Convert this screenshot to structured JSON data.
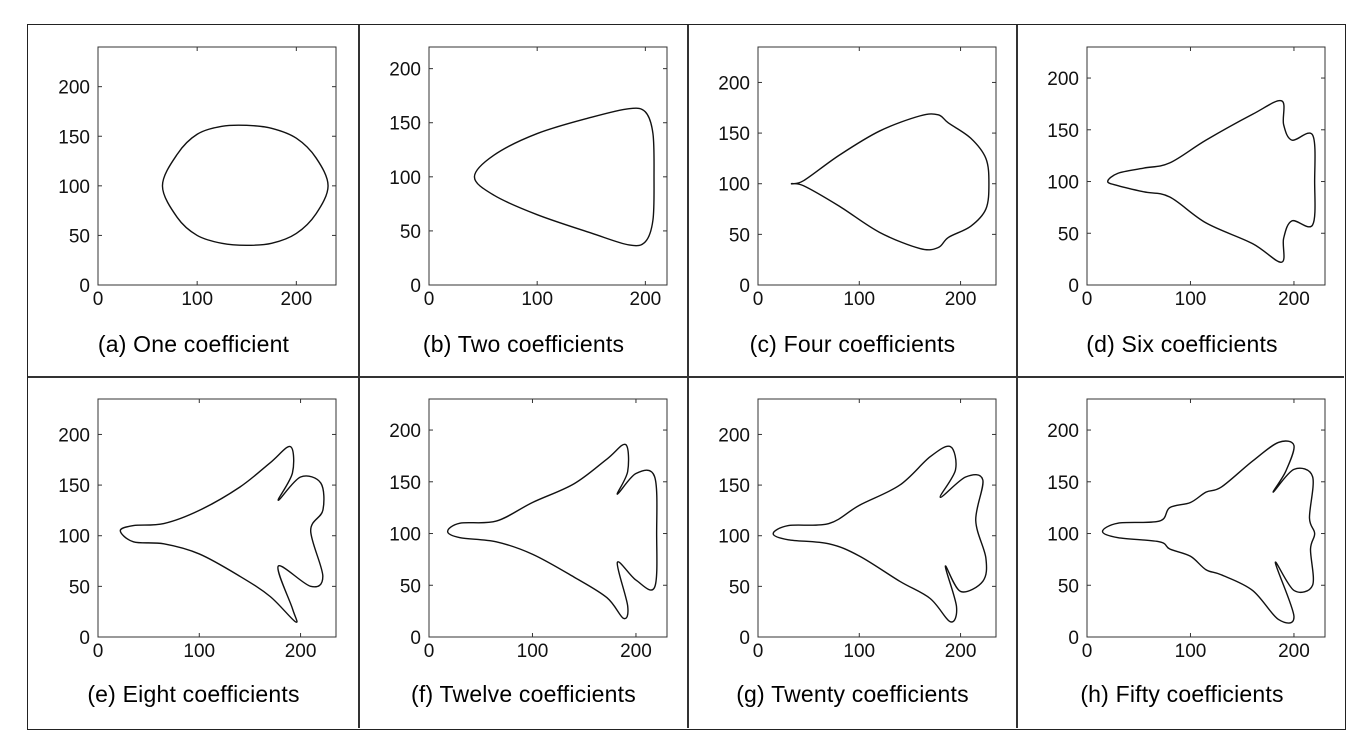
{
  "figure": {
    "panels": [
      {
        "caption": "(a) One coefficient"
      },
      {
        "caption": "(b) Two coefficients"
      },
      {
        "caption": "(c) Four coefficients"
      },
      {
        "caption": "(d) Six coefficients"
      },
      {
        "caption": "(e) Eight coefficients"
      },
      {
        "caption": "(f) Twelve coefficients"
      },
      {
        "caption": "(g) Twenty coefficients"
      },
      {
        "caption": "(h) Fifty coefficients"
      }
    ]
  },
  "chart_data": [
    {
      "type": "line",
      "title": "(a) One coefficient",
      "xlim": [
        0,
        240
      ],
      "ylim": [
        0,
        240
      ],
      "xticks": [
        0,
        100,
        200
      ],
      "yticks": [
        0,
        50,
        100,
        150,
        200
      ],
      "grid": false,
      "x": [
        65,
        80,
        100,
        125,
        150,
        175,
        200,
        220,
        232,
        220,
        200,
        175,
        150,
        125,
        100,
        80,
        65
      ],
      "y": [
        100,
        132,
        152,
        160,
        161,
        158,
        148,
        128,
        100,
        72,
        52,
        42,
        40,
        42,
        50,
        68,
        100
      ]
    },
    {
      "type": "line",
      "title": "(b) Two coefficients",
      "xlim": [
        0,
        220
      ],
      "ylim": [
        0,
        220
      ],
      "xticks": [
        0,
        100,
        200
      ],
      "yticks": [
        0,
        50,
        100,
        150,
        200
      ],
      "grid": false,
      "x": [
        42,
        60,
        100,
        150,
        185,
        200,
        207,
        208,
        207,
        200,
        185,
        150,
        100,
        60,
        42
      ],
      "y": [
        100,
        120,
        140,
        155,
        163,
        160,
        140,
        100,
        60,
        40,
        37,
        48,
        65,
        83,
        100
      ]
    },
    {
      "type": "line",
      "title": "(c) Four coefficients",
      "xlim": [
        0,
        235
      ],
      "ylim": [
        0,
        235
      ],
      "xticks": [
        0,
        100,
        200
      ],
      "yticks": [
        0,
        50,
        100,
        150,
        200
      ],
      "grid": false,
      "x": [
        33,
        45,
        80,
        120,
        160,
        178,
        188,
        210,
        225,
        228,
        225,
        210,
        188,
        178,
        160,
        120,
        80,
        45,
        33
      ],
      "y": [
        100,
        103,
        128,
        152,
        167,
        168,
        160,
        145,
        125,
        100,
        75,
        58,
        47,
        37,
        36,
        52,
        78,
        98,
        100
      ]
    },
    {
      "type": "line",
      "title": "(d) Six coefficients",
      "xlim": [
        0,
        230
      ],
      "ylim": [
        0,
        230
      ],
      "xticks": [
        0,
        100,
        200
      ],
      "yticks": [
        0,
        50,
        100,
        150,
        200
      ],
      "grid": false,
      "x": [
        20,
        30,
        55,
        80,
        115,
        160,
        188,
        190,
        198,
        218,
        220,
        218,
        198,
        190,
        188,
        160,
        115,
        80,
        55,
        30,
        20
      ],
      "y": [
        100,
        108,
        113,
        118,
        140,
        165,
        178,
        155,
        140,
        145,
        100,
        58,
        62,
        45,
        22,
        40,
        60,
        85,
        90,
        96,
        100
      ]
    },
    {
      "type": "line",
      "title": "(e) Eight coefficients",
      "xlim": [
        0,
        235
      ],
      "ylim": [
        0,
        235
      ],
      "xticks": [
        0,
        100,
        200
      ],
      "yticks": [
        0,
        50,
        100,
        150,
        200
      ],
      "grid": false,
      "x": [
        22,
        35,
        65,
        100,
        140,
        170,
        190,
        192,
        178,
        200,
        220,
        222,
        210,
        222,
        210,
        178,
        192,
        195,
        170,
        140,
        100,
        65,
        35,
        22
      ],
      "y": [
        105,
        110,
        112,
        125,
        148,
        172,
        188,
        162,
        135,
        158,
        152,
        125,
        105,
        60,
        50,
        70,
        28,
        15,
        40,
        60,
        82,
        92,
        94,
        105
      ]
    },
    {
      "type": "line",
      "title": "(f) Twelve coefficients",
      "xlim": [
        0,
        230
      ],
      "ylim": [
        0,
        230
      ],
      "xticks": [
        0,
        100,
        200
      ],
      "yticks": [
        0,
        50,
        100,
        150,
        200
      ],
      "grid": false,
      "x": [
        18,
        30,
        65,
        100,
        140,
        172,
        190,
        192,
        182,
        200,
        218,
        220,
        218,
        200,
        182,
        192,
        188,
        172,
        140,
        100,
        65,
        30,
        18
      ],
      "y": [
        102,
        110,
        112,
        130,
        148,
        172,
        186,
        160,
        138,
        158,
        155,
        100,
        48,
        55,
        72,
        30,
        18,
        38,
        58,
        80,
        92,
        96,
        102
      ]
    },
    {
      "type": "line",
      "title": "(g) Twenty coefficients",
      "xlim": [
        0,
        235
      ],
      "ylim": [
        0,
        235
      ],
      "xticks": [
        0,
        100,
        200
      ],
      "yticks": [
        0,
        50,
        100,
        150,
        200
      ],
      "grid": false,
      "x": [
        15,
        30,
        70,
        100,
        140,
        170,
        190,
        195,
        180,
        205,
        222,
        215,
        225,
        222,
        200,
        185,
        196,
        190,
        170,
        140,
        100,
        70,
        30,
        15
      ],
      "y": [
        102,
        110,
        112,
        130,
        150,
        178,
        188,
        165,
        138,
        158,
        155,
        115,
        78,
        55,
        45,
        70,
        30,
        15,
        38,
        55,
        80,
        92,
        96,
        102
      ]
    },
    {
      "type": "line",
      "title": "(h) Fifty coefficients",
      "xlim": [
        0,
        230
      ],
      "ylim": [
        0,
        230
      ],
      "xticks": [
        0,
        100,
        200
      ],
      "yticks": [
        0,
        50,
        100,
        150,
        200
      ],
      "grid": false,
      "x": [
        15,
        30,
        70,
        80,
        100,
        115,
        130,
        160,
        185,
        200,
        192,
        180,
        200,
        218,
        215,
        220,
        216,
        218,
        200,
        182,
        200,
        185,
        160,
        130,
        115,
        100,
        80,
        70,
        30,
        15
      ],
      "y": [
        102,
        110,
        112,
        125,
        130,
        140,
        145,
        170,
        188,
        185,
        160,
        140,
        162,
        155,
        115,
        100,
        85,
        50,
        45,
        72,
        20,
        17,
        45,
        60,
        65,
        78,
        85,
        92,
        96,
        102
      ]
    }
  ]
}
